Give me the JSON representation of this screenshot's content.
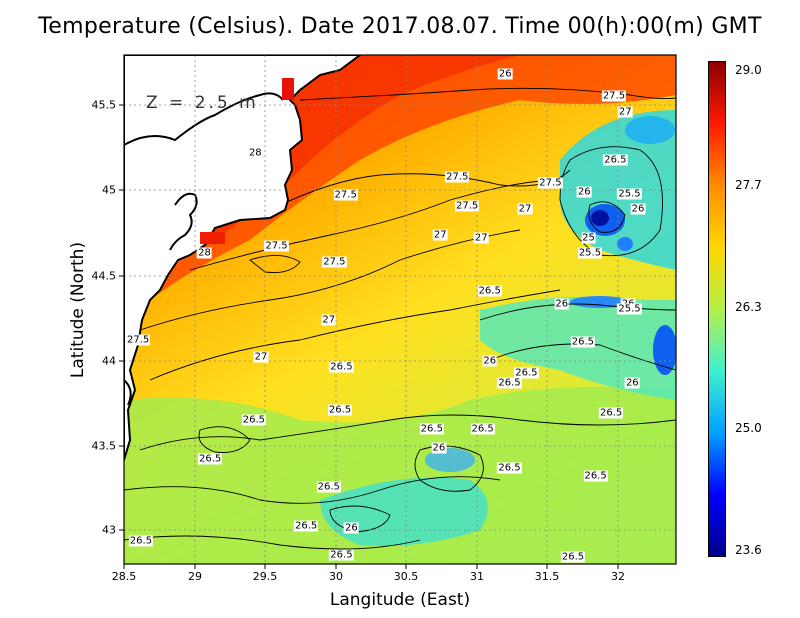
{
  "title": "Temperature (Celsius). Date 2017.08.07. Time 00(h):00(m)  GMT",
  "xlabel": "Langitude (East)",
  "ylabel": "Latitude (North)",
  "depth_label": "Z = 2.5 m",
  "x_ticks": [
    "28.5",
    "29",
    "29.5",
    "30",
    "30.5",
    "31",
    "31.5",
    "32"
  ],
  "y_ticks": [
    "45.5",
    "45",
    "44.5",
    "44",
    "43.5",
    "43"
  ],
  "colorbar": {
    "ticks": [
      "29.0",
      "27.7",
      "26.3",
      "25.0",
      "23.6"
    ],
    "colors": [
      "#8b0000",
      "#ff1a00",
      "#ff8c00",
      "#ffd700",
      "#b5f04a",
      "#40f0d0",
      "#00a0ff",
      "#0000ff",
      "#00008b"
    ]
  },
  "contour_labels": [
    {
      "text": "26",
      "lon": 31.2,
      "lat": 45.68
    },
    {
      "text": "27.5",
      "lon": 31.97,
      "lat": 45.55
    },
    {
      "text": "27",
      "lon": 32.05,
      "lat": 45.46
    },
    {
      "text": "28",
      "lon": 29.43,
      "lat": 45.22
    },
    {
      "text": "26.5",
      "lon": 31.98,
      "lat": 45.18
    },
    {
      "text": "27.5",
      "lon": 30.86,
      "lat": 45.08
    },
    {
      "text": "27.5",
      "lon": 31.52,
      "lat": 45.04
    },
    {
      "text": "26",
      "lon": 31.76,
      "lat": 44.99
    },
    {
      "text": "25.5",
      "lon": 32.08,
      "lat": 44.98
    },
    {
      "text": "27.5",
      "lon": 30.07,
      "lat": 44.97
    },
    {
      "text": "27.5",
      "lon": 30.93,
      "lat": 44.91
    },
    {
      "text": "27",
      "lon": 31.34,
      "lat": 44.89
    },
    {
      "text": "26",
      "lon": 32.14,
      "lat": 44.89
    },
    {
      "text": "27",
      "lon": 30.74,
      "lat": 44.74
    },
    {
      "text": "27",
      "lon": 31.03,
      "lat": 44.72
    },
    {
      "text": "25",
      "lon": 31.79,
      "lat": 44.72
    },
    {
      "text": "27.5",
      "lon": 29.58,
      "lat": 44.67
    },
    {
      "text": "25.5",
      "lon": 31.8,
      "lat": 44.63
    },
    {
      "text": "28",
      "lon": 29.07,
      "lat": 44.63
    },
    {
      "text": "27.5",
      "lon": 29.99,
      "lat": 44.58
    },
    {
      "text": "26.5",
      "lon": 31.09,
      "lat": 44.41
    },
    {
      "text": "26",
      "lon": 31.6,
      "lat": 44.33
    },
    {
      "text": "26",
      "lon": 32.07,
      "lat": 44.33
    },
    {
      "text": "25.5",
      "lon": 32.08,
      "lat": 44.3
    },
    {
      "text": "27",
      "lon": 29.95,
      "lat": 44.24
    },
    {
      "text": "27.5",
      "lon": 28.6,
      "lat": 44.12
    },
    {
      "text": "26.5",
      "lon": 31.75,
      "lat": 44.11
    },
    {
      "text": "27",
      "lon": 29.47,
      "lat": 44.02
    },
    {
      "text": "26",
      "lon": 31.09,
      "lat": 44.0
    },
    {
      "text": "26.5",
      "lon": 30.04,
      "lat": 43.96
    },
    {
      "text": "26.5",
      "lon": 31.35,
      "lat": 43.93
    },
    {
      "text": "26.5",
      "lon": 31.23,
      "lat": 43.87
    },
    {
      "text": "26",
      "lon": 32.1,
      "lat": 43.87
    },
    {
      "text": "26.5",
      "lon": 30.03,
      "lat": 43.71
    },
    {
      "text": "26.5",
      "lon": 31.95,
      "lat": 43.69
    },
    {
      "text": "26.5",
      "lon": 29.42,
      "lat": 43.65
    },
    {
      "text": "26.5",
      "lon": 30.68,
      "lat": 43.6
    },
    {
      "text": "26.5",
      "lon": 31.04,
      "lat": 43.6
    },
    {
      "text": "26",
      "lon": 30.73,
      "lat": 43.49
    },
    {
      "text": "26.5",
      "lon": 29.11,
      "lat": 43.42
    },
    {
      "text": "26.5",
      "lon": 31.23,
      "lat": 43.37
    },
    {
      "text": "26.5",
      "lon": 31.84,
      "lat": 43.32
    },
    {
      "text": "26.5",
      "lon": 29.95,
      "lat": 43.26
    },
    {
      "text": "26.5",
      "lon": 29.79,
      "lat": 43.03
    },
    {
      "text": "26",
      "lon": 30.11,
      "lat": 43.02
    },
    {
      "text": "26.5",
      "lon": 28.62,
      "lat": 42.94
    },
    {
      "text": "26.5",
      "lon": 30.04,
      "lat": 42.86
    },
    {
      "text": "26.5",
      "lon": 31.68,
      "lat": 42.85
    }
  ]
}
